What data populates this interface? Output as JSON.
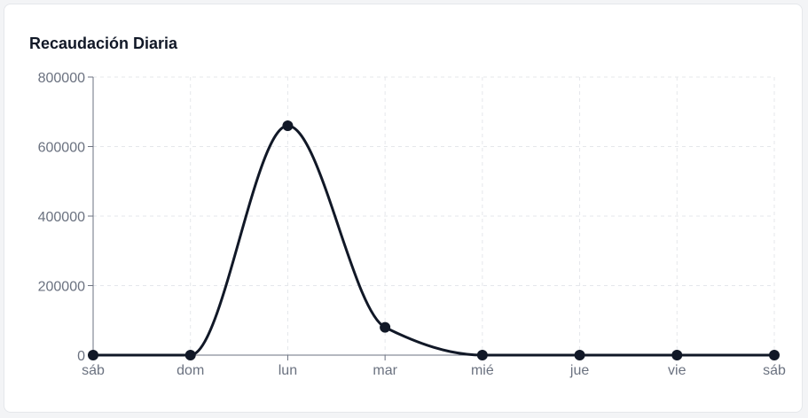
{
  "card": {
    "title": "Recaudación Diaria"
  },
  "chart_data": {
    "type": "line",
    "title": "Recaudación Diaria",
    "categories": [
      "sáb",
      "dom",
      "lun",
      "mar",
      "mié",
      "jue",
      "vie",
      "sáb"
    ],
    "series": [
      {
        "values": [
          0,
          0,
          660000,
          80000,
          0,
          0,
          0,
          0
        ]
      }
    ],
    "y_ticks": [
      "0",
      "200000",
      "400000",
      "600000",
      "800000"
    ],
    "ylim": [
      0,
      800000
    ],
    "curve": "smooth",
    "grid": true,
    "legend": "none",
    "colors": {
      "line": "#111827",
      "grid": "#e5e7eb",
      "axis": "#6b7280",
      "text": "#6b7280"
    }
  }
}
